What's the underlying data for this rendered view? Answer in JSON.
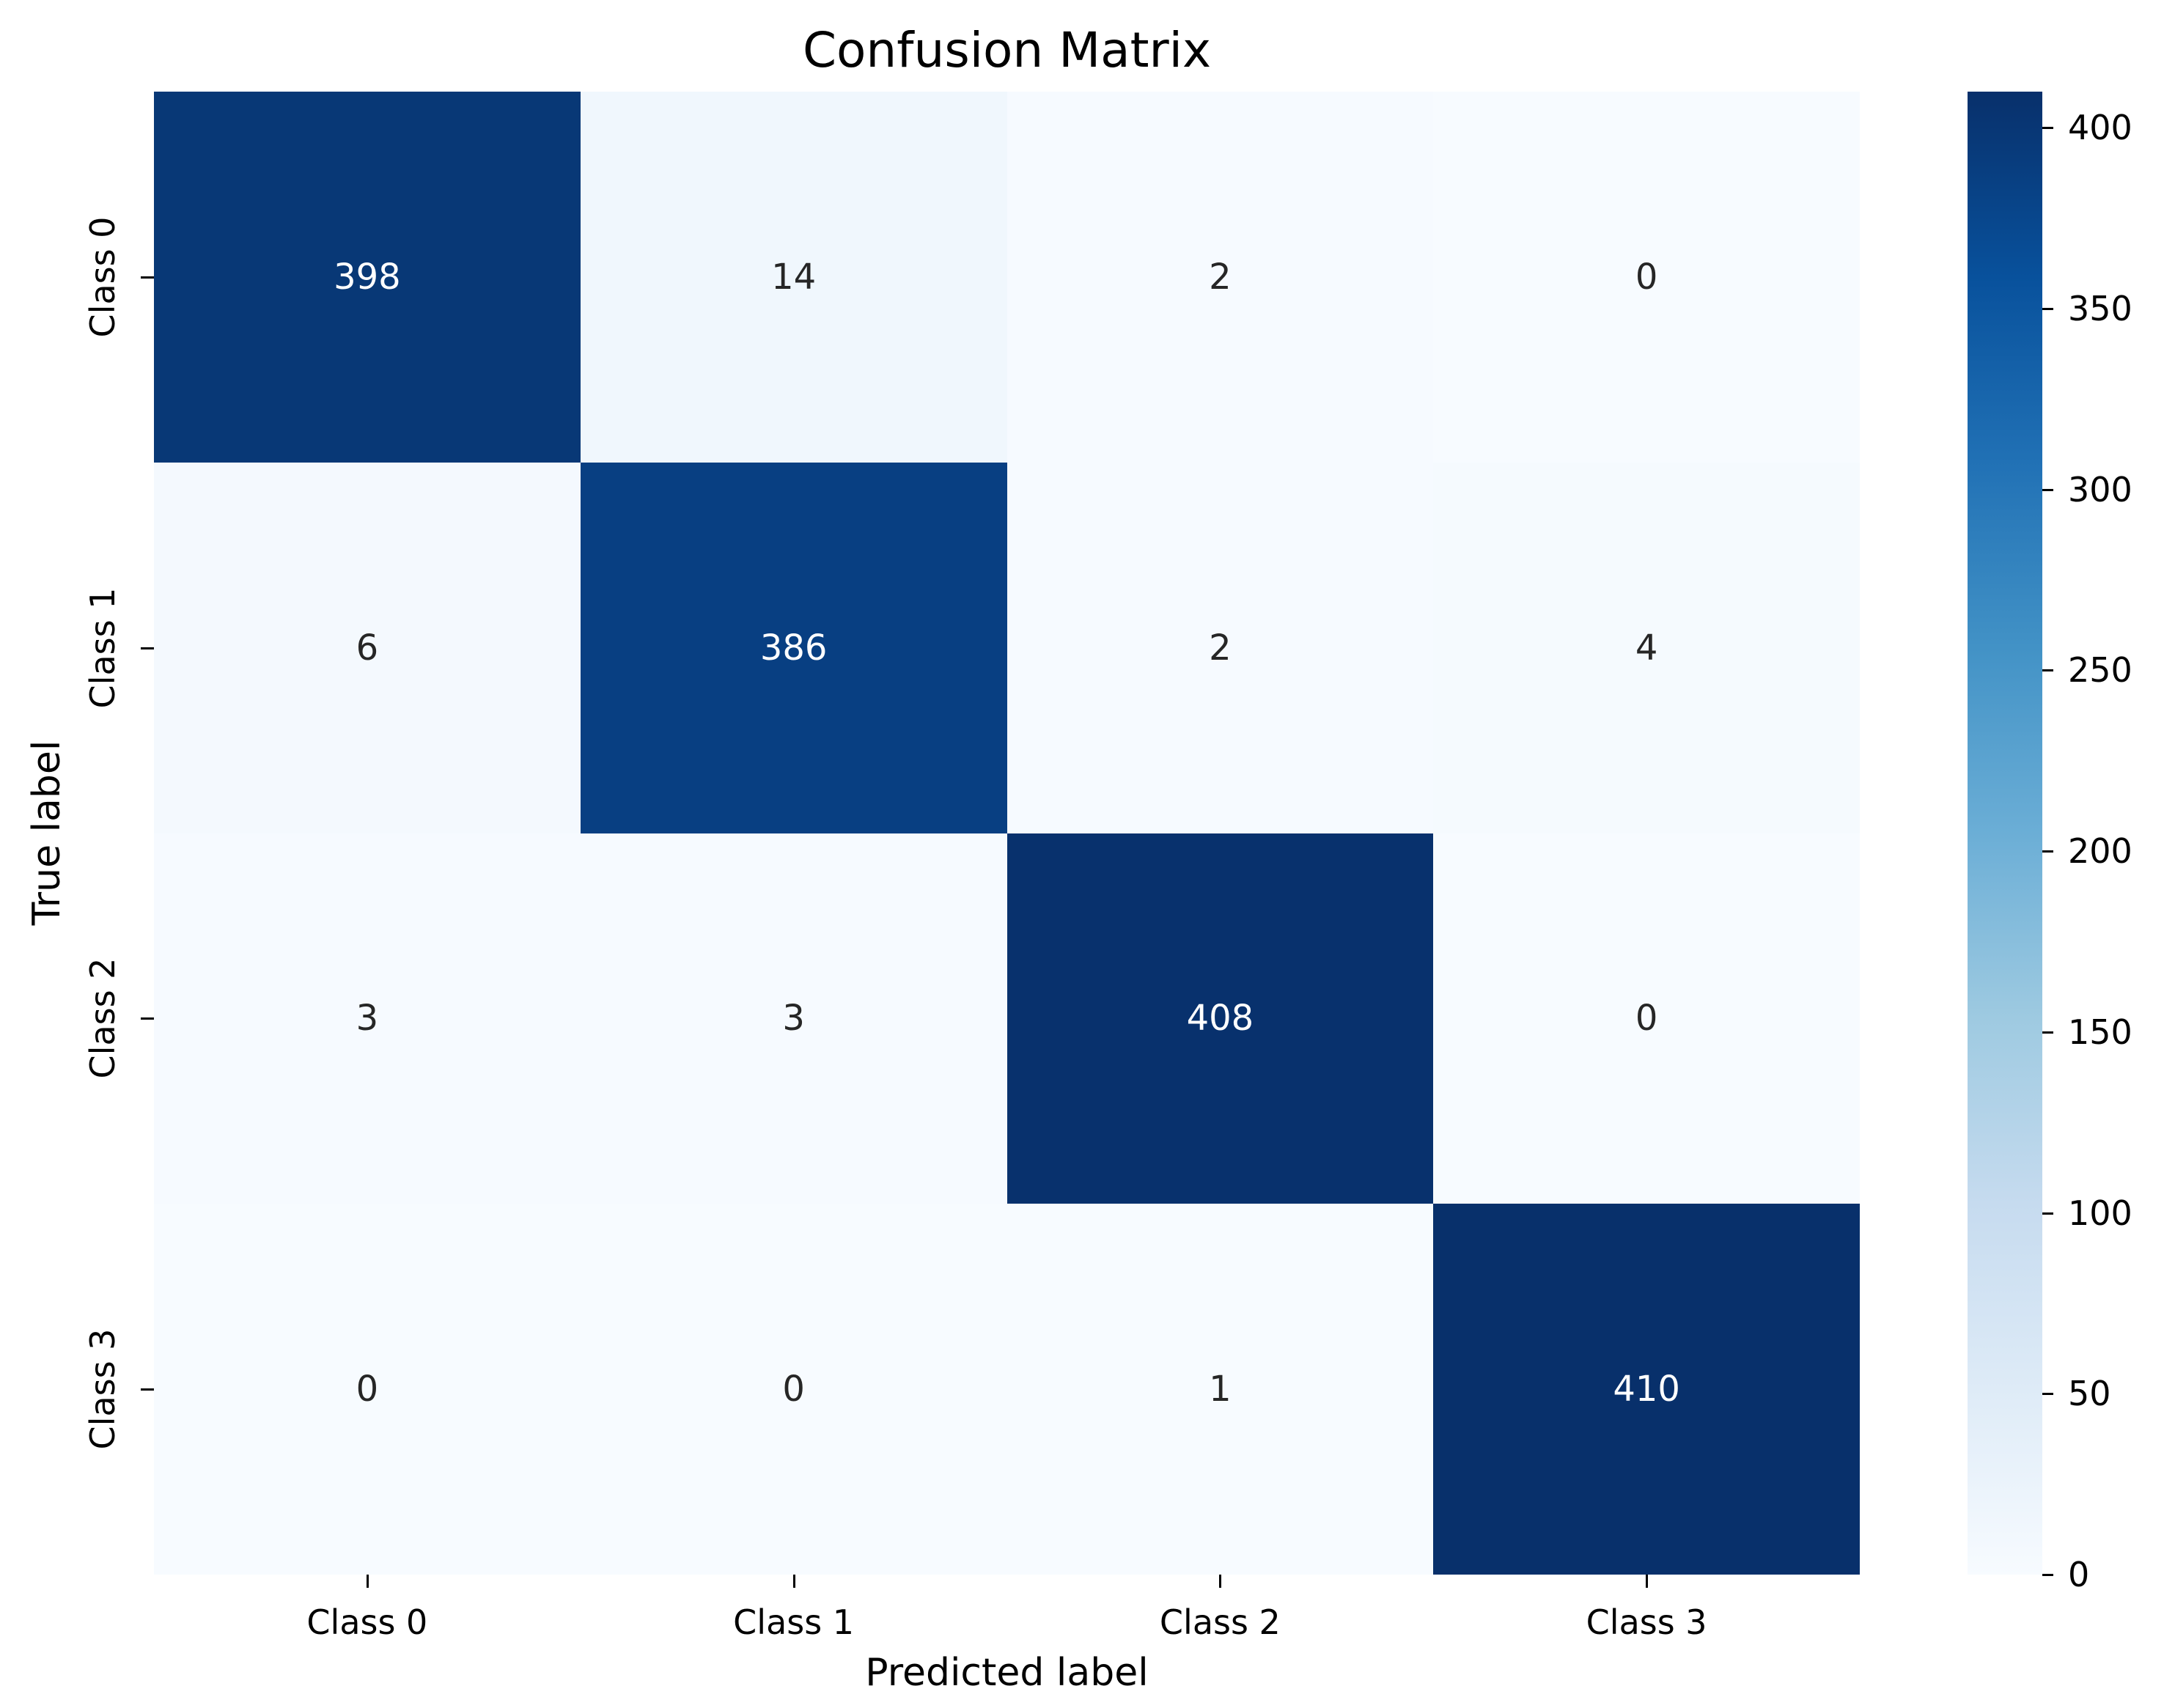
{
  "title": "Confusion Matrix",
  "chart_data": {
    "type": "heatmap",
    "title": "Confusion Matrix",
    "xlabel": "Predicted label",
    "ylabel": "True label",
    "x_categories": [
      "Class 0",
      "Class 1",
      "Class 2",
      "Class 3"
    ],
    "y_categories": [
      "Class 0",
      "Class 1",
      "Class 2",
      "Class 3"
    ],
    "matrix": [
      [
        398,
        14,
        2,
        0
      ],
      [
        6,
        386,
        2,
        4
      ],
      [
        3,
        3,
        408,
        0
      ],
      [
        0,
        0,
        1,
        410
      ]
    ],
    "vmin": 0,
    "vmax": 410,
    "colormap": "Blues",
    "colormap_hex": [
      "#f7fbff",
      "#deebf7",
      "#c6dbef",
      "#9ecae1",
      "#6baed6",
      "#4292c6",
      "#2171b5",
      "#08519c",
      "#08306b"
    ],
    "colorbar_ticks": [
      0,
      50,
      100,
      150,
      200,
      250,
      300,
      350,
      400
    ],
    "annotation_color_dark": "#262626",
    "annotation_color_light": "#ffffff",
    "legend_position": "right-colorbar",
    "grid": false
  }
}
